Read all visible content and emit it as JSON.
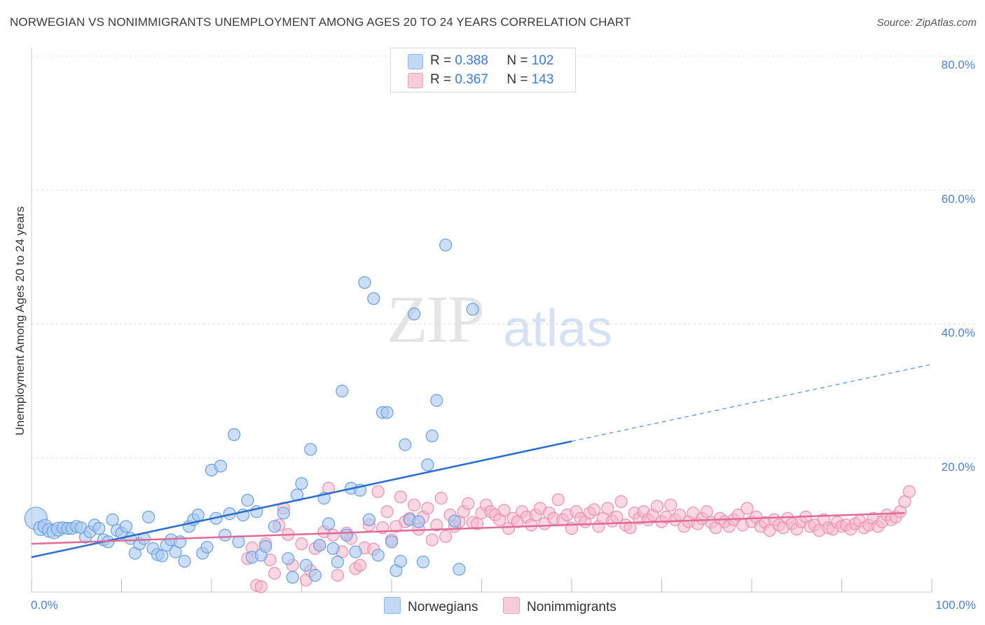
{
  "title": "NORWEGIAN VS NONIMMIGRANTS UNEMPLOYMENT AMONG AGES 20 TO 24 YEARS CORRELATION CHART",
  "source": "Source: ZipAtlas.com",
  "watermark": {
    "zip": "ZIP",
    "atlas": "atlas"
  },
  "legend": {
    "rows": [
      {
        "r_label": "R = ",
        "r_value": "0.388",
        "n_label": "N = ",
        "n_value": "102"
      },
      {
        "r_label": "R = ",
        "r_value": "0.367",
        "n_label": "N = ",
        "n_value": "143"
      }
    ]
  },
  "colors": {
    "norwegians_fill": "#a9c8f0",
    "norwegians_stroke": "#6a9fe0",
    "norwegians_line": "#2a6fd0",
    "nonimmigrants_fill": "#f5b6cb",
    "nonimmigrants_stroke": "#ea8fb0",
    "nonimmigrants_line": "#e06a95"
  },
  "chart_data": {
    "type": "scatter",
    "title": "NORWEGIAN VS NONIMMIGRANTS UNEMPLOYMENT AMONG AGES 20 TO 24 YEARS CORRELATION CHART",
    "xlabel": "",
    "ylabel": "Unemployment Among Ages 20 to 24 years",
    "xlim": [
      0,
      100
    ],
    "ylim": [
      0,
      80
    ],
    "x_tick_labels": [
      "0.0%",
      "100.0%"
    ],
    "y_tick_labels": [
      "20.0%",
      "40.0%",
      "60.0%",
      "80.0%"
    ],
    "y_ticks": [
      20,
      40,
      60,
      80
    ],
    "legend_position": "bottom-center",
    "series": [
      {
        "name": "Norwegians",
        "R": 0.388,
        "N": 102,
        "trend": {
          "x0": 0,
          "y0": 5.2,
          "x1": 60,
          "y1": 22.5,
          "dashed_to_x": 100,
          "dashed_to_y": 34.0
        },
        "points": [
          [
            0.5,
            11.0
          ],
          [
            1,
            9.5
          ],
          [
            1.5,
            9.8
          ],
          [
            2,
            9.2
          ],
          [
            2.5,
            9.0
          ],
          [
            3,
            9.4
          ],
          [
            3.5,
            9.6
          ],
          [
            4,
            9.5
          ],
          [
            4.5,
            9.5
          ],
          [
            5,
            9.8
          ],
          [
            5.5,
            9.6
          ],
          [
            6,
            8.2
          ],
          [
            6.5,
            9.0
          ],
          [
            7,
            10.0
          ],
          [
            7.5,
            9.5
          ],
          [
            8,
            7.8
          ],
          [
            8.5,
            7.5
          ],
          [
            9,
            10.8
          ],
          [
            9.5,
            9.2
          ],
          [
            10,
            8.8
          ],
          [
            10.5,
            9.8
          ],
          [
            11,
            8.0
          ],
          [
            11.5,
            5.8
          ],
          [
            12,
            7.2
          ],
          [
            12.5,
            8.0
          ],
          [
            13,
            11.2
          ],
          [
            13.5,
            6.5
          ],
          [
            14,
            5.6
          ],
          [
            14.5,
            5.4
          ],
          [
            15,
            7.0
          ],
          [
            15.5,
            7.8
          ],
          [
            16,
            6.0
          ],
          [
            16.5,
            7.5
          ],
          [
            17,
            4.6
          ],
          [
            17.5,
            9.8
          ],
          [
            18,
            10.8
          ],
          [
            18.5,
            11.5
          ],
          [
            19,
            5.8
          ],
          [
            19.5,
            6.7
          ],
          [
            20,
            18.2
          ],
          [
            20.5,
            11.0
          ],
          [
            21,
            18.8
          ],
          [
            21.5,
            8.5
          ],
          [
            22,
            11.7
          ],
          [
            22.5,
            23.5
          ],
          [
            23,
            7.5
          ],
          [
            23.5,
            11.5
          ],
          [
            24,
            13.7
          ],
          [
            24.5,
            5.2
          ],
          [
            25,
            12.0
          ],
          [
            25.5,
            5.5
          ],
          [
            26,
            6.8
          ],
          [
            27,
            9.8
          ],
          [
            28,
            11.8
          ],
          [
            28.5,
            5.0
          ],
          [
            29,
            2.2
          ],
          [
            29.5,
            14.5
          ],
          [
            30,
            16.2
          ],
          [
            30.5,
            4.0
          ],
          [
            31,
            21.3
          ],
          [
            31.5,
            2.5
          ],
          [
            32,
            7.0
          ],
          [
            32.5,
            14.0
          ],
          [
            33,
            10.2
          ],
          [
            33.5,
            6.5
          ],
          [
            34,
            4.5
          ],
          [
            34.5,
            30.0
          ],
          [
            35,
            8.5
          ],
          [
            35.5,
            15.5
          ],
          [
            36,
            6.0
          ],
          [
            36.5,
            15.2
          ],
          [
            37,
            46.2
          ],
          [
            37.5,
            10.8
          ],
          [
            38,
            43.8
          ],
          [
            38.5,
            5.5
          ],
          [
            39,
            26.8
          ],
          [
            39.5,
            26.8
          ],
          [
            40,
            7.5
          ],
          [
            40.5,
            3.2
          ],
          [
            41,
            4.6
          ],
          [
            41.5,
            22.0
          ],
          [
            42,
            10.8
          ],
          [
            42.5,
            41.5
          ],
          [
            43,
            10.5
          ],
          [
            43.5,
            4.5
          ],
          [
            44,
            19.0
          ],
          [
            44.5,
            23.3
          ],
          [
            45,
            28.6
          ],
          [
            46,
            51.8
          ],
          [
            47,
            10.6
          ],
          [
            47.5,
            3.4
          ],
          [
            49,
            42.2
          ]
        ]
      },
      {
        "name": "Nonimmigrants",
        "R": 0.367,
        "N": 143,
        "trend": {
          "x0": 0,
          "y0": 7.2,
          "x1": 97,
          "y1": 11.8
        },
        "points": [
          [
            24,
            5.0
          ],
          [
            24.5,
            6.6
          ],
          [
            25,
            1.0
          ],
          [
            25.5,
            0.8
          ],
          [
            26,
            7.2
          ],
          [
            26.5,
            4.8
          ],
          [
            27,
            2.8
          ],
          [
            27.5,
            10.0
          ],
          [
            28,
            12.5
          ],
          [
            28.5,
            8.6
          ],
          [
            29,
            4.0
          ],
          [
            30,
            7.2
          ],
          [
            30.5,
            1.8
          ],
          [
            31,
            3.2
          ],
          [
            31.5,
            6.5
          ],
          [
            32,
            7.0
          ],
          [
            32.5,
            9.0
          ],
          [
            33,
            15.5
          ],
          [
            33.5,
            8.5
          ],
          [
            34,
            2.5
          ],
          [
            34.5,
            6.0
          ],
          [
            35,
            8.8
          ],
          [
            35.5,
            8.0
          ],
          [
            36,
            3.5
          ],
          [
            36.5,
            4.0
          ],
          [
            37,
            6.6
          ],
          [
            37.5,
            10.0
          ],
          [
            38,
            6.4
          ],
          [
            38.5,
            15.0
          ],
          [
            39,
            9.6
          ],
          [
            39.5,
            12.0
          ],
          [
            40,
            7.8
          ],
          [
            40.5,
            9.8
          ],
          [
            41,
            14.2
          ],
          [
            41.5,
            10.5
          ],
          [
            42,
            11.0
          ],
          [
            42.5,
            13.0
          ],
          [
            43,
            9.4
          ],
          [
            43.5,
            11.2
          ],
          [
            44,
            12.5
          ],
          [
            44.5,
            7.8
          ],
          [
            45,
            10.0
          ],
          [
            45.5,
            14.0
          ],
          [
            46,
            8.3
          ],
          [
            46.5,
            11.5
          ],
          [
            47,
            9.8
          ],
          [
            47.5,
            10.5
          ],
          [
            48,
            12.0
          ],
          [
            48.5,
            13.2
          ],
          [
            49,
            10.4
          ],
          [
            49.5,
            10.2
          ],
          [
            50,
            11.8
          ],
          [
            50.5,
            13.0
          ],
          [
            51,
            12.0
          ],
          [
            51.5,
            11.5
          ],
          [
            52,
            10.8
          ],
          [
            52.5,
            12.2
          ],
          [
            53,
            9.5
          ],
          [
            53.5,
            11.0
          ],
          [
            54,
            10.5
          ],
          [
            54.5,
            12.0
          ],
          [
            55,
            11.2
          ],
          [
            55.5,
            10.0
          ],
          [
            56,
            11.5
          ],
          [
            56.5,
            12.5
          ],
          [
            57,
            10.2
          ],
          [
            57.5,
            11.8
          ],
          [
            58,
            11.0
          ],
          [
            58.5,
            13.8
          ],
          [
            59,
            10.8
          ],
          [
            59.5,
            11.5
          ],
          [
            60,
            9.5
          ],
          [
            60.5,
            12.0
          ],
          [
            61,
            11.0
          ],
          [
            61.5,
            10.5
          ],
          [
            62,
            11.8
          ],
          [
            62.5,
            12.3
          ],
          [
            63,
            9.8
          ],
          [
            63.5,
            11.0
          ],
          [
            64,
            12.5
          ],
          [
            64.5,
            10.6
          ],
          [
            65,
            11.2
          ],
          [
            65.5,
            13.5
          ],
          [
            66,
            10.0
          ],
          [
            66.5,
            9.6
          ],
          [
            67,
            11.8
          ],
          [
            67.5,
            11.0
          ],
          [
            68,
            12.0
          ],
          [
            68.5,
            10.8
          ],
          [
            69,
            11.5
          ],
          [
            69.5,
            12.8
          ],
          [
            70,
            10.5
          ],
          [
            70.5,
            11.2
          ],
          [
            71,
            13.0
          ],
          [
            71.5,
            10.8
          ],
          [
            72,
            11.5
          ],
          [
            72.5,
            9.8
          ],
          [
            73,
            10.5
          ],
          [
            73.5,
            11.8
          ],
          [
            74,
            10.2
          ],
          [
            74.5,
            11.0
          ],
          [
            75,
            12.0
          ],
          [
            75.5,
            10.4
          ],
          [
            76,
            9.6
          ],
          [
            76.5,
            11.0
          ],
          [
            77,
            10.5
          ],
          [
            77.5,
            9.8
          ],
          [
            78,
            10.8
          ],
          [
            78.5,
            11.5
          ],
          [
            79,
            10.0
          ],
          [
            79.5,
            12.5
          ],
          [
            80,
            10.5
          ],
          [
            80.5,
            11.2
          ],
          [
            81,
            9.8
          ],
          [
            81.5,
            10.4
          ],
          [
            82,
            9.2
          ],
          [
            82.5,
            10.8
          ],
          [
            83,
            10.0
          ],
          [
            83.5,
            9.6
          ],
          [
            84,
            11.0
          ],
          [
            84.5,
            10.2
          ],
          [
            85,
            9.4
          ],
          [
            85.5,
            10.5
          ],
          [
            86,
            11.2
          ],
          [
            86.5,
            9.8
          ],
          [
            87,
            10.0
          ],
          [
            87.5,
            9.2
          ],
          [
            88,
            10.8
          ],
          [
            88.5,
            9.6
          ],
          [
            89,
            9.4
          ],
          [
            89.5,
            10.4
          ],
          [
            90,
            9.8
          ],
          [
            90.5,
            10.0
          ],
          [
            91,
            9.4
          ],
          [
            91.5,
            10.2
          ],
          [
            92,
            10.6
          ],
          [
            92.5,
            9.6
          ],
          [
            93,
            10.0
          ],
          [
            93.5,
            11.0
          ],
          [
            94,
            9.8
          ],
          [
            94.5,
            10.5
          ],
          [
            95,
            11.5
          ],
          [
            95.5,
            10.8
          ],
          [
            96,
            11.2
          ],
          [
            96.5,
            12.0
          ],
          [
            97,
            13.5
          ],
          [
            97.5,
            15.0
          ]
        ]
      }
    ]
  }
}
